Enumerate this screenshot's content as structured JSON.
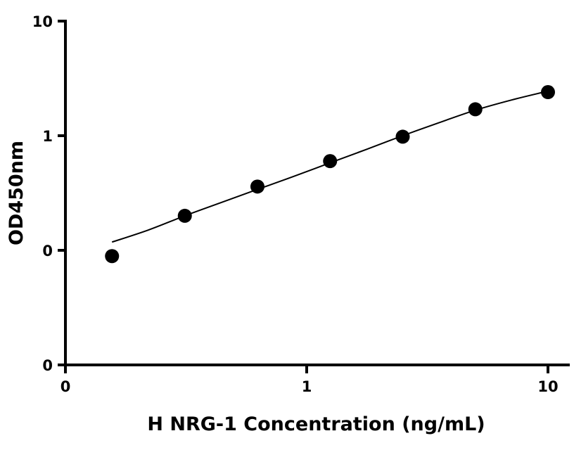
{
  "chart_data": {
    "type": "scatter",
    "title": "",
    "xlabel": "H NRG-1 Concentration (ng/mL)",
    "ylabel": "OD450nm",
    "x_scale": "log",
    "y_scale": "log",
    "xlim": [
      0.01,
      15
    ],
    "ylim": [
      0.01,
      10
    ],
    "x_ticks": [
      {
        "value": 0.01,
        "label": "0"
      },
      {
        "value": 1,
        "label": "1"
      },
      {
        "value": 10,
        "label": "10"
      }
    ],
    "y_ticks": [
      {
        "value": 0.01,
        "label": "0"
      },
      {
        "value": 0.1,
        "label": "0"
      },
      {
        "value": 1,
        "label": "1"
      },
      {
        "value": 10,
        "label": "10"
      }
    ],
    "grid": false,
    "series": [
      {
        "type": "scatter",
        "marker": "circle",
        "color": "#000000",
        "points": [
          {
            "x": 0.156,
            "y": 0.089
          },
          {
            "x": 0.3125,
            "y": 0.2
          },
          {
            "x": 0.625,
            "y": 0.36
          },
          {
            "x": 1.25,
            "y": 0.6
          },
          {
            "x": 2.5,
            "y": 0.98
          },
          {
            "x": 5,
            "y": 1.7
          },
          {
            "x": 10,
            "y": 2.4
          }
        ]
      },
      {
        "type": "line",
        "style": "fitted-curve",
        "color": "#000000",
        "points": [
          {
            "x": 0.156,
            "y": 0.118
          },
          {
            "x": 0.22,
            "y": 0.15
          },
          {
            "x": 0.3125,
            "y": 0.2
          },
          {
            "x": 0.44,
            "y": 0.26
          },
          {
            "x": 0.625,
            "y": 0.34
          },
          {
            "x": 0.88,
            "y": 0.44
          },
          {
            "x": 1.25,
            "y": 0.58
          },
          {
            "x": 1.77,
            "y": 0.76
          },
          {
            "x": 2.5,
            "y": 1.0
          },
          {
            "x": 3.54,
            "y": 1.3
          },
          {
            "x": 5,
            "y": 1.67
          },
          {
            "x": 7.07,
            "y": 2.05
          },
          {
            "x": 10,
            "y": 2.45
          }
        ]
      }
    ]
  }
}
